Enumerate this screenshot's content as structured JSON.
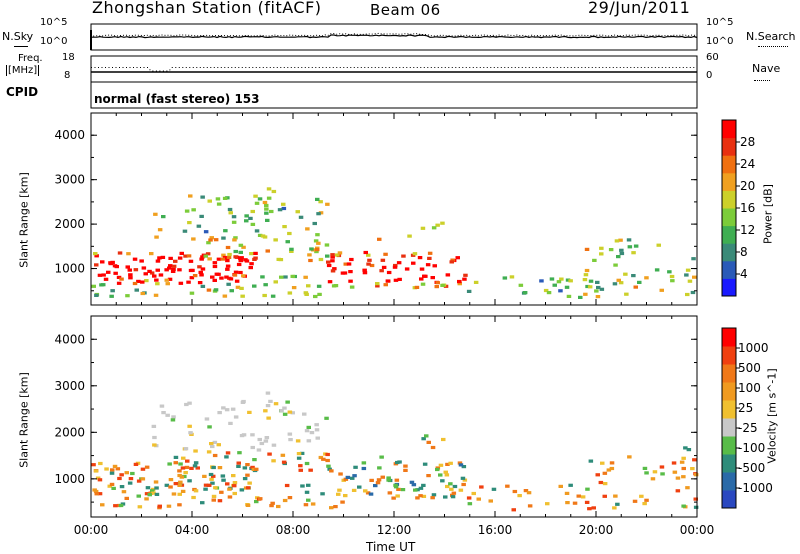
{
  "header": {
    "station": "Zhongshan Station (fitACF)",
    "beam": "Beam 06",
    "date": "29/Jun/2011"
  },
  "top_panels": {
    "nsky_label": "N.Sky",
    "nsearch_label": "N.Search",
    "nsky_ticks": [
      "10^5",
      "10^0"
    ],
    "nsearch_ticks": [
      "10^5",
      "10^0"
    ],
    "freq_label": [
      "Freq.",
      "[MHz]"
    ],
    "freq_ticks": [
      "18",
      "8"
    ],
    "nave_label": "Nave",
    "nave_ticks": [
      "60",
      "0"
    ],
    "cpid_label": "CPID",
    "cpid_text": "normal (fast stereo) 153"
  },
  "chart_data": [
    {
      "type": "heatmap",
      "title": "",
      "xlabel": "",
      "ylabel": "Slant Range [km]",
      "xlim": [
        "00:00",
        "24:00"
      ],
      "ylim": [
        180,
        4500
      ],
      "y_ticks": [
        "4000",
        "3000",
        "2000",
        "1000"
      ],
      "colorbar": {
        "label": "Power [dB]",
        "ticks": [
          "28",
          "24",
          "20",
          "16",
          "12",
          "8",
          "4"
        ],
        "colors": [
          "#1a1aff",
          "#2a5ab8",
          "#3a8a78",
          "#3fae52",
          "#7ccc3a",
          "#ccd02a",
          "#f0a020",
          "#f07010",
          "#e83010",
          "#ff0000"
        ]
      }
    },
    {
      "type": "heatmap",
      "title": "",
      "xlabel": "Time UT",
      "ylabel": "Slant Range [km]",
      "xlim": [
        "00:00",
        "24:00"
      ],
      "ylim": [
        180,
        4500
      ],
      "x_ticks": [
        "00:00",
        "04:00",
        "08:00",
        "12:00",
        "16:00",
        "20:00",
        "00:00"
      ],
      "y_ticks": [
        "4000",
        "3000",
        "2000",
        "1000"
      ],
      "colorbar": {
        "label": "Velocity [m s^-1]",
        "ticks": [
          "1000",
          "500",
          "100",
          "25",
          "-25",
          "-100",
          "-500",
          "-1000"
        ],
        "colors": [
          "#2a48c0",
          "#2a6aa8",
          "#2e8c7a",
          "#58bc48",
          "#c8c8c8",
          "#f0c030",
          "#f09a20",
          "#f07818",
          "#f04010",
          "#ff0000"
        ]
      }
    }
  ]
}
